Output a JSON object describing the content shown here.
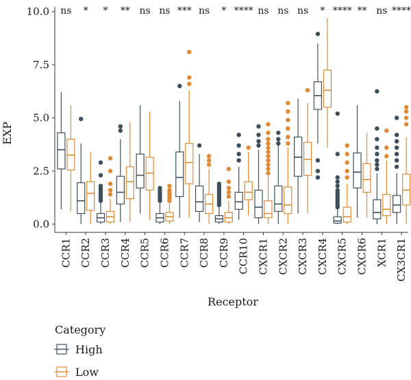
{
  "chart_data": {
    "type": "boxplot",
    "ylabel": "EXP",
    "xlabel": "Receptor",
    "ylim": [
      0,
      10
    ],
    "yticks": [
      "0.0",
      "2.5",
      "5.0",
      "7.5",
      "10.0"
    ],
    "categories": [
      "CCR1",
      "CCR2",
      "CCR3",
      "CCR4",
      "CCR5",
      "CCR6",
      "CCR7",
      "CCR8",
      "CCR9",
      "CCR10",
      "CXCR1",
      "CXCR2",
      "CXCR3",
      "CXCR4",
      "CXCR5",
      "CXCR6",
      "XCR1",
      "CX3CR1"
    ],
    "significance": [
      "ns",
      "*",
      "*",
      "**",
      "ns",
      "ns",
      "***",
      "ns",
      "*",
      "****",
      "ns",
      "ns",
      "ns",
      "*",
      "****",
      "**",
      "ns",
      "****"
    ],
    "colors": {
      "High": "#3d4f5c",
      "Low": "#e08a34"
    },
    "legend": {
      "title": "Category",
      "position": "bottom-left"
    },
    "series": [
      {
        "name": "High",
        "boxes": [
          {
            "lo": 0.7,
            "q1": 2.6,
            "med": 3.5,
            "q3": 4.3,
            "hi": 6.2,
            "out": []
          },
          {
            "lo": 0,
            "q1": 0.5,
            "med": 1.1,
            "q3": 1.95,
            "hi": 3.8,
            "out": [
              4.95
            ]
          },
          {
            "lo": 0,
            "q1": 0.1,
            "med": 0.3,
            "q3": 0.5,
            "hi": 1.0,
            "out": [
              1.1,
              1.2,
              1.3,
              1.4,
              1.5,
              1.6,
              1.7,
              1.8,
              2.3,
              2.9
            ]
          },
          {
            "lo": 0.1,
            "q1": 0.95,
            "med": 1.5,
            "q3": 2.25,
            "hi": 4.0,
            "out": [
              4.4,
              4.6
            ]
          },
          {
            "lo": 0.5,
            "q1": 1.7,
            "med": 2.3,
            "q3": 3.3,
            "hi": 5.6,
            "out": []
          },
          {
            "lo": 0,
            "q1": 0.1,
            "med": 0.3,
            "q3": 0.5,
            "hi": 1.0,
            "out": [
              1.1,
              1.2,
              1.3,
              1.4,
              1.5,
              1.6,
              1.7
            ]
          },
          {
            "lo": 0.3,
            "q1": 1.3,
            "med": 2.2,
            "q3": 3.4,
            "hi": 5.8,
            "out": [
              6.5
            ]
          },
          {
            "lo": 0.1,
            "q1": 0.6,
            "med": 1.05,
            "q3": 1.8,
            "hi": 3.3,
            "out": [
              3.7
            ]
          },
          {
            "lo": 0,
            "q1": 0.1,
            "med": 0.25,
            "q3": 0.4,
            "hi": 0.8,
            "out": [
              0.9,
              1.0,
              1.1,
              1.2,
              1.3,
              1.4,
              1.5,
              1.6,
              1.7,
              1.8,
              1.9
            ]
          },
          {
            "lo": 0.2,
            "q1": 0.7,
            "med": 1.05,
            "q3": 1.5,
            "hi": 2.7,
            "out": [
              3.0,
              3.3,
              3.7,
              4.2
            ]
          },
          {
            "lo": 0,
            "q1": 0.3,
            "med": 0.8,
            "q3": 1.6,
            "hi": 3.5,
            "out": [
              3.7,
              3.9,
              4.2,
              4.6
            ]
          },
          {
            "lo": 0,
            "q1": 0.6,
            "med": 0.95,
            "q3": 1.8,
            "hi": 3.7,
            "out": [
              3.8,
              4.0,
              4.3
            ]
          },
          {
            "lo": 0.5,
            "q1": 2.25,
            "med": 3.15,
            "q3": 4.1,
            "hi": 5.9,
            "out": []
          },
          {
            "lo": 3.8,
            "q1": 5.4,
            "med": 6.05,
            "q3": 6.7,
            "hi": 8.5,
            "out": [
              2.2,
              2.5,
              3.0,
              8.95
            ]
          },
          {
            "lo": 0,
            "q1": 0.05,
            "med": 0.15,
            "q3": 0.35,
            "hi": 0.7,
            "out": [
              0.8,
              0.9,
              1.0,
              1.1,
              1.2,
              1.3,
              1.4,
              1.5,
              1.6,
              1.8,
              2.0,
              2.2,
              3.3,
              5.2
            ]
          },
          {
            "lo": 0.3,
            "q1": 1.7,
            "med": 2.45,
            "q3": 3.35,
            "hi": 5.6,
            "out": []
          },
          {
            "lo": 0,
            "q1": 0.25,
            "med": 0.55,
            "q3": 1.15,
            "hi": 2.4,
            "out": [
              2.6,
              2.8,
              3.0,
              3.3,
              3.6,
              4.0,
              4.5,
              6.25
            ]
          },
          {
            "lo": 0,
            "q1": 0.55,
            "med": 0.9,
            "q3": 1.35,
            "hi": 2.4,
            "out": [
              2.7,
              3.0,
              3.3,
              3.6,
              3.9,
              4.2,
              5.0
            ]
          }
        ]
      },
      {
        "name": "Low",
        "boxes": [
          {
            "lo": 0.6,
            "q1": 2.55,
            "med": 3.25,
            "q3": 4.0,
            "hi": 5.6,
            "out": []
          },
          {
            "lo": 0,
            "q1": 0.65,
            "med": 1.45,
            "q3": 2.0,
            "hi": 3.4,
            "out": []
          },
          {
            "lo": 0,
            "q1": 0.1,
            "med": 0.35,
            "q3": 0.6,
            "hi": 1.2,
            "out": [
              1.4,
              1.6,
              1.9,
              2.5,
              3.1
            ]
          },
          {
            "lo": 0.1,
            "q1": 1.2,
            "med": 2.0,
            "q3": 2.7,
            "hi": 4.8,
            "out": []
          },
          {
            "lo": 0.2,
            "q1": 1.6,
            "med": 2.4,
            "q3": 3.15,
            "hi": 5.3,
            "out": []
          },
          {
            "lo": 0,
            "q1": 0.15,
            "med": 0.35,
            "q3": 0.55,
            "hi": 1.0,
            "out": [
              1.1,
              1.2,
              1.3,
              1.4,
              1.5,
              1.6,
              1.8
            ]
          },
          {
            "lo": 0.3,
            "q1": 1.9,
            "med": 2.9,
            "q3": 3.8,
            "hi": 6.3,
            "out": [
              6.6,
              6.9,
              8.1
            ]
          },
          {
            "lo": 0,
            "q1": 0.5,
            "med": 0.95,
            "q3": 1.4,
            "hi": 2.6,
            "out": [
              2.8,
              3.0,
              3.2
            ]
          },
          {
            "lo": 0,
            "q1": 0.1,
            "med": 0.3,
            "q3": 0.55,
            "hi": 1.1,
            "out": [
              1.3,
              1.5,
              1.7,
              2.0,
              2.6
            ]
          },
          {
            "lo": 0.4,
            "q1": 1.15,
            "med": 1.5,
            "q3": 2.0,
            "hi": 3.4,
            "out": [
              3.6
            ]
          },
          {
            "lo": 0,
            "q1": 0.3,
            "med": 0.5,
            "q3": 1.1,
            "hi": 2.3,
            "out": [
              2.4,
              2.6,
              2.8,
              3.0,
              3.2,
              3.4,
              3.6,
              3.8,
              4.0,
              4.3,
              4.7
            ]
          },
          {
            "lo": 0,
            "q1": 0.5,
            "med": 0.9,
            "q3": 1.75,
            "hi": 3.6,
            "out": [
              3.8,
              4.1,
              4.5,
              4.9,
              5.3,
              5.7
            ]
          },
          {
            "lo": 0.5,
            "q1": 2.3,
            "med": 3.05,
            "q3": 3.85,
            "hi": 5.7,
            "out": [
              6.3
            ]
          },
          {
            "lo": 3.6,
            "q1": 5.5,
            "med": 6.3,
            "q3": 7.25,
            "hi": 9.7,
            "out": []
          },
          {
            "lo": 0,
            "q1": 0.1,
            "med": 0.35,
            "q3": 0.8,
            "hi": 1.9,
            "out": [
              2.2,
              2.5,
              2.9,
              3.3,
              3.7
            ]
          },
          {
            "lo": 0.3,
            "q1": 1.5,
            "med": 2.1,
            "q3": 2.85,
            "hi": 4.3,
            "out": []
          },
          {
            "lo": 0,
            "q1": 0.4,
            "med": 0.7,
            "q3": 1.4,
            "hi": 3.0,
            "out": [
              3.2,
              3.6,
              4.4
            ]
          },
          {
            "lo": 0,
            "q1": 0.9,
            "med": 1.6,
            "q3": 2.35,
            "hi": 4.1,
            "out": [
              4.7,
              5.0,
              5.3,
              5.5
            ]
          }
        ]
      }
    ]
  }
}
